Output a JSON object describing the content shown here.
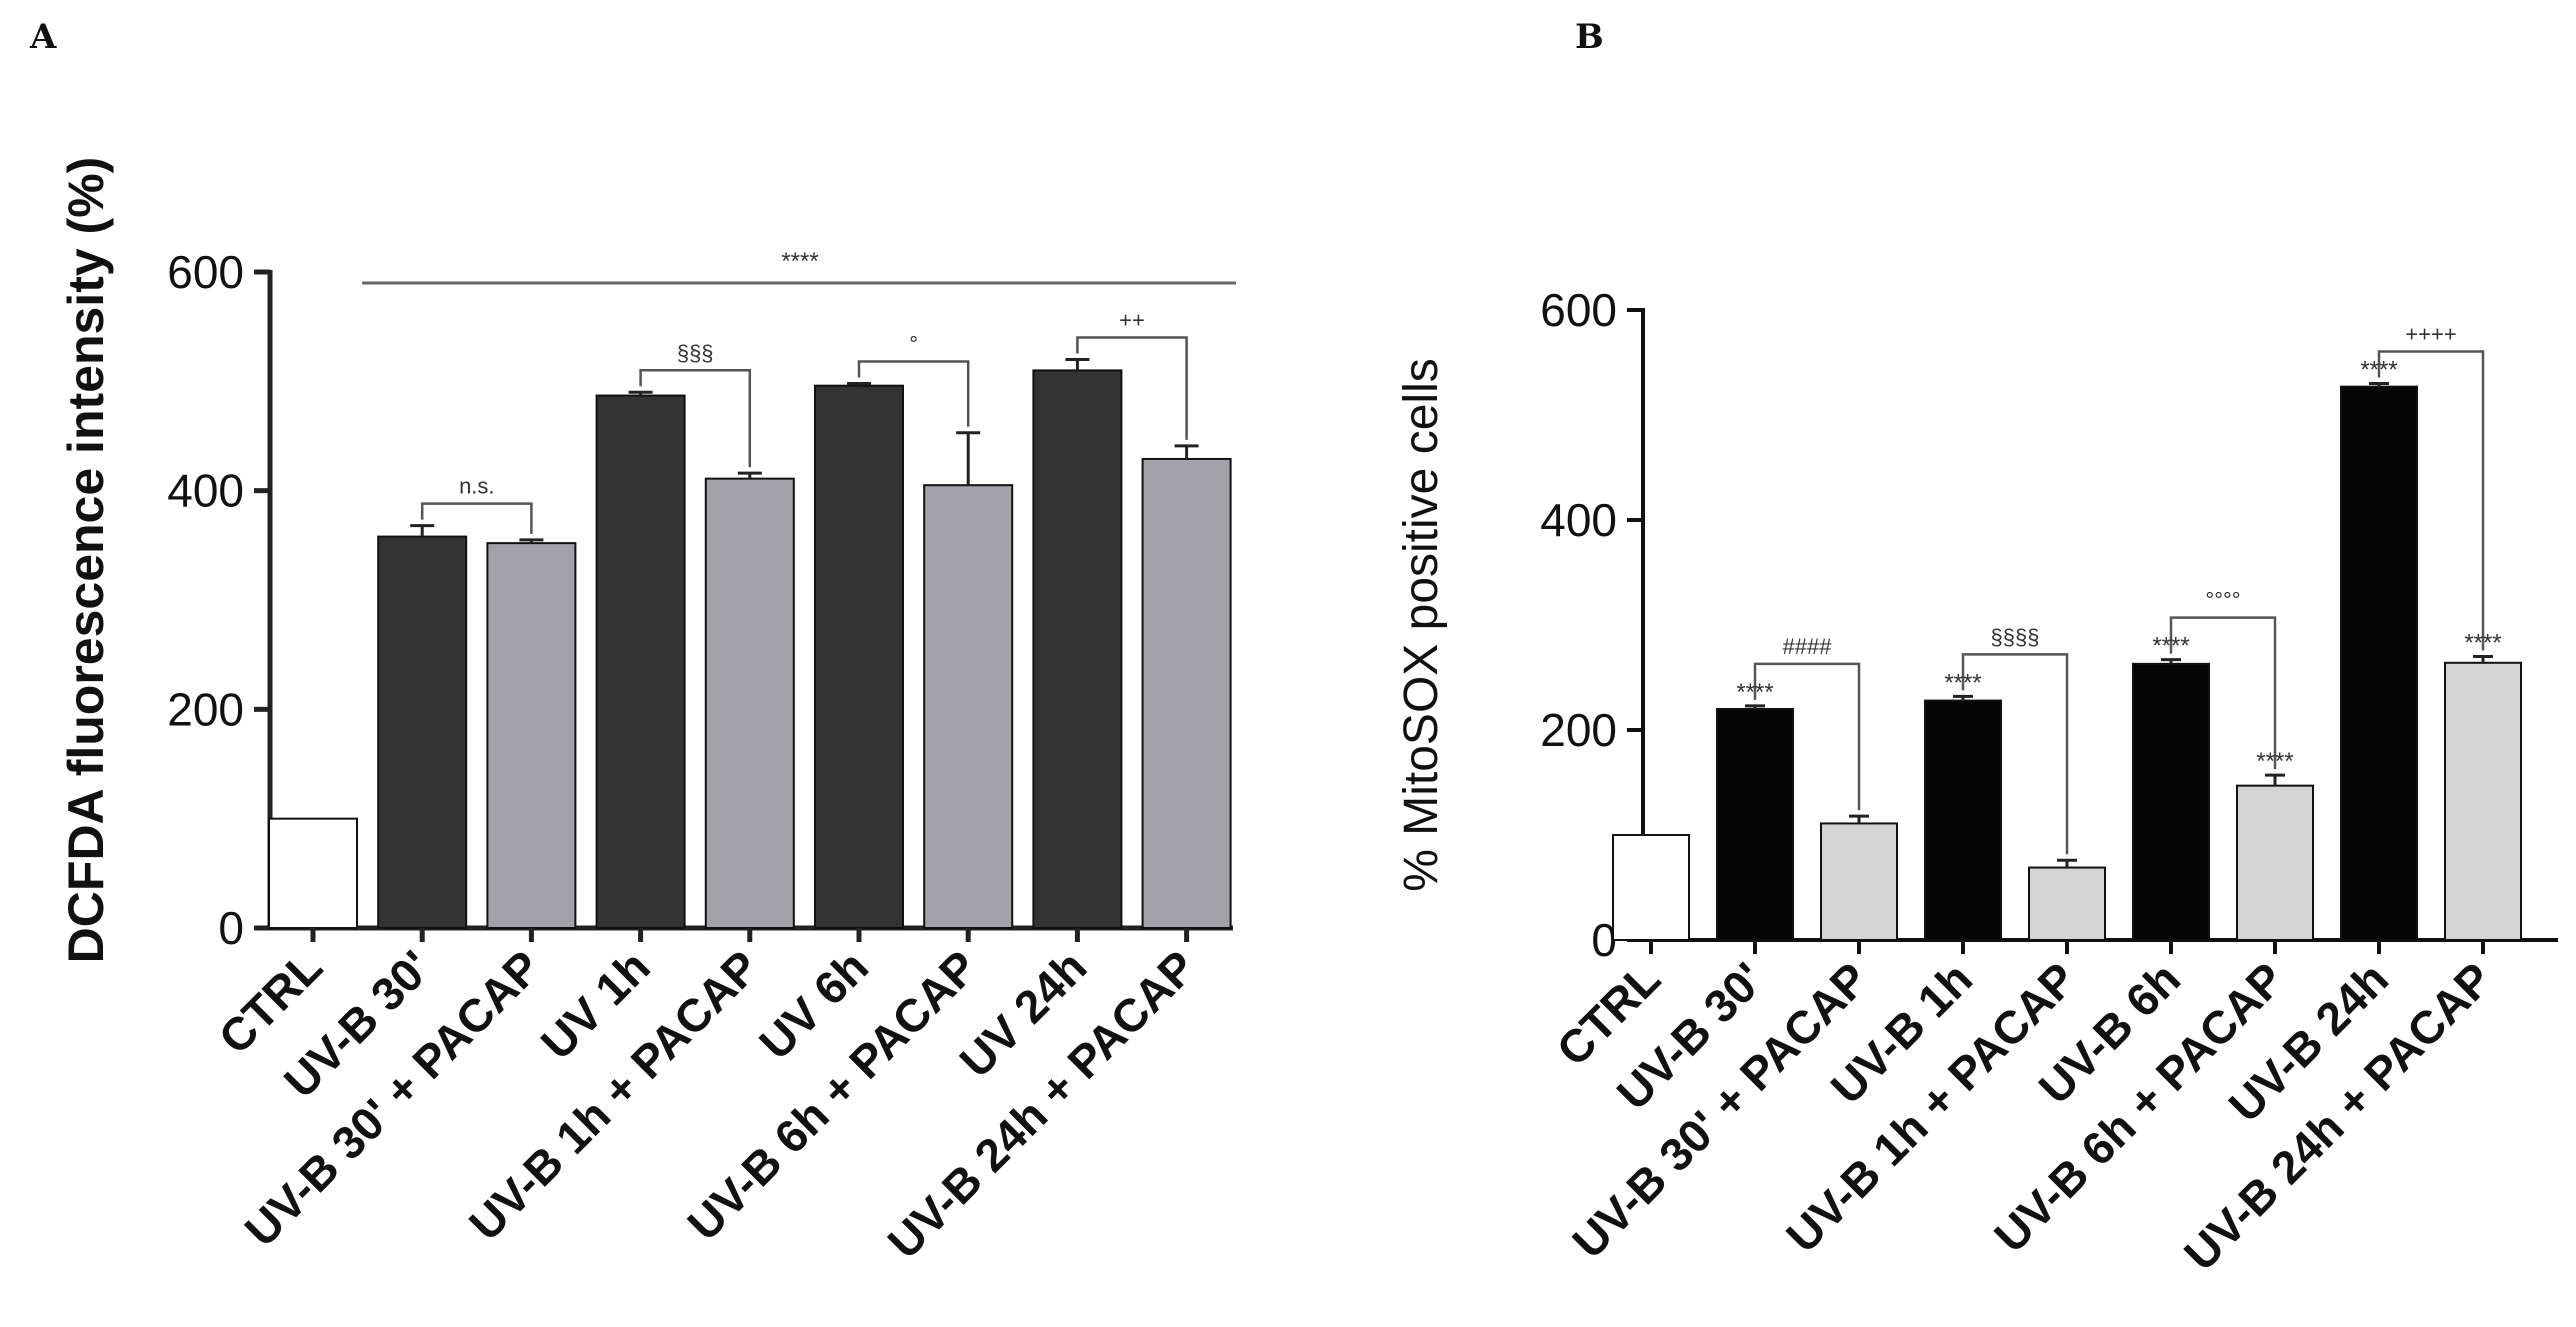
{
  "chart_data": [
    {
      "panel": "A",
      "type": "bar",
      "title": "",
      "xlabel": "",
      "ylabel": "DCFDA fluorescence intensity (%)",
      "ylim": [
        0,
        600
      ],
      "yticks": [
        0,
        200,
        400,
        600
      ],
      "categories": [
        "CTRL",
        "UV-B 30'",
        "UV-B 30' + PACAP",
        "UV 1h",
        "UV-B 1h + PACAP",
        "UV 6h",
        "UV-B 6h + PACAP",
        "UV 24h",
        "UV-B 24h + PACAP"
      ],
      "values": [
        100,
        358,
        352,
        487,
        411,
        496,
        405,
        510,
        429
      ],
      "errors": [
        0,
        10,
        3,
        3,
        5,
        2,
        48,
        10,
        12
      ],
      "bar_colors": [
        "#ffffff",
        "#333333",
        "#a2a2a8",
        "#333333",
        "#a2a2a8",
        "#333333",
        "#a2a2a8",
        "#333333",
        "#a2a2a8"
      ],
      "overall_annotation": {
        "label": "****",
        "from": 1,
        "to": 8
      },
      "bracket_annotations": [
        {
          "label": "n.s.",
          "from": 1,
          "to": 2
        },
        {
          "label": "§§§",
          "from": 3,
          "to": 4
        },
        {
          "label": "°",
          "from": 5,
          "to": 6
        },
        {
          "label": "++",
          "from": 7,
          "to": 8
        }
      ],
      "bar_annotations": []
    },
    {
      "panel": "B",
      "type": "bar",
      "title": "",
      "xlabel": "",
      "ylabel": "% MitoSOX positive cells",
      "ylim": [
        0,
        600
      ],
      "yticks": [
        0,
        200,
        400,
        600
      ],
      "categories": [
        "CTRL",
        "UV-B 30'",
        "UV-B 30' + PACAP",
        "UV-B 1h",
        "UV-B 1h + PACAP",
        "UV-B 6h",
        "UV-B 6h + PACAP",
        "UV-B 24h",
        "UV-B 24h + PACAP"
      ],
      "values": [
        100,
        220,
        111,
        228,
        69,
        263,
        147,
        527,
        264
      ],
      "errors": [
        0,
        3,
        7,
        4,
        7,
        4,
        10,
        3,
        6
      ],
      "bar_colors": [
        "#ffffff",
        "#050505",
        "#d4d4d4",
        "#050505",
        "#d4d4d4",
        "#050505",
        "#d4d4d4",
        "#050505",
        "#d4d4d4"
      ],
      "overall_annotation": null,
      "bracket_annotations": [
        {
          "label": "####",
          "from": 1,
          "to": 2
        },
        {
          "label": "§§§§",
          "from": 3,
          "to": 4
        },
        {
          "label": "°°°°",
          "from": 5,
          "to": 6
        },
        {
          "label": "++++",
          "from": 7,
          "to": 8
        }
      ],
      "bar_annotations": [
        {
          "index": 1,
          "label": "****"
        },
        {
          "index": 3,
          "label": "****"
        },
        {
          "index": 5,
          "label": "****"
        },
        {
          "index": 6,
          "label": "****"
        },
        {
          "index": 7,
          "label": "****"
        },
        {
          "index": 8,
          "label": "****"
        }
      ]
    }
  ]
}
